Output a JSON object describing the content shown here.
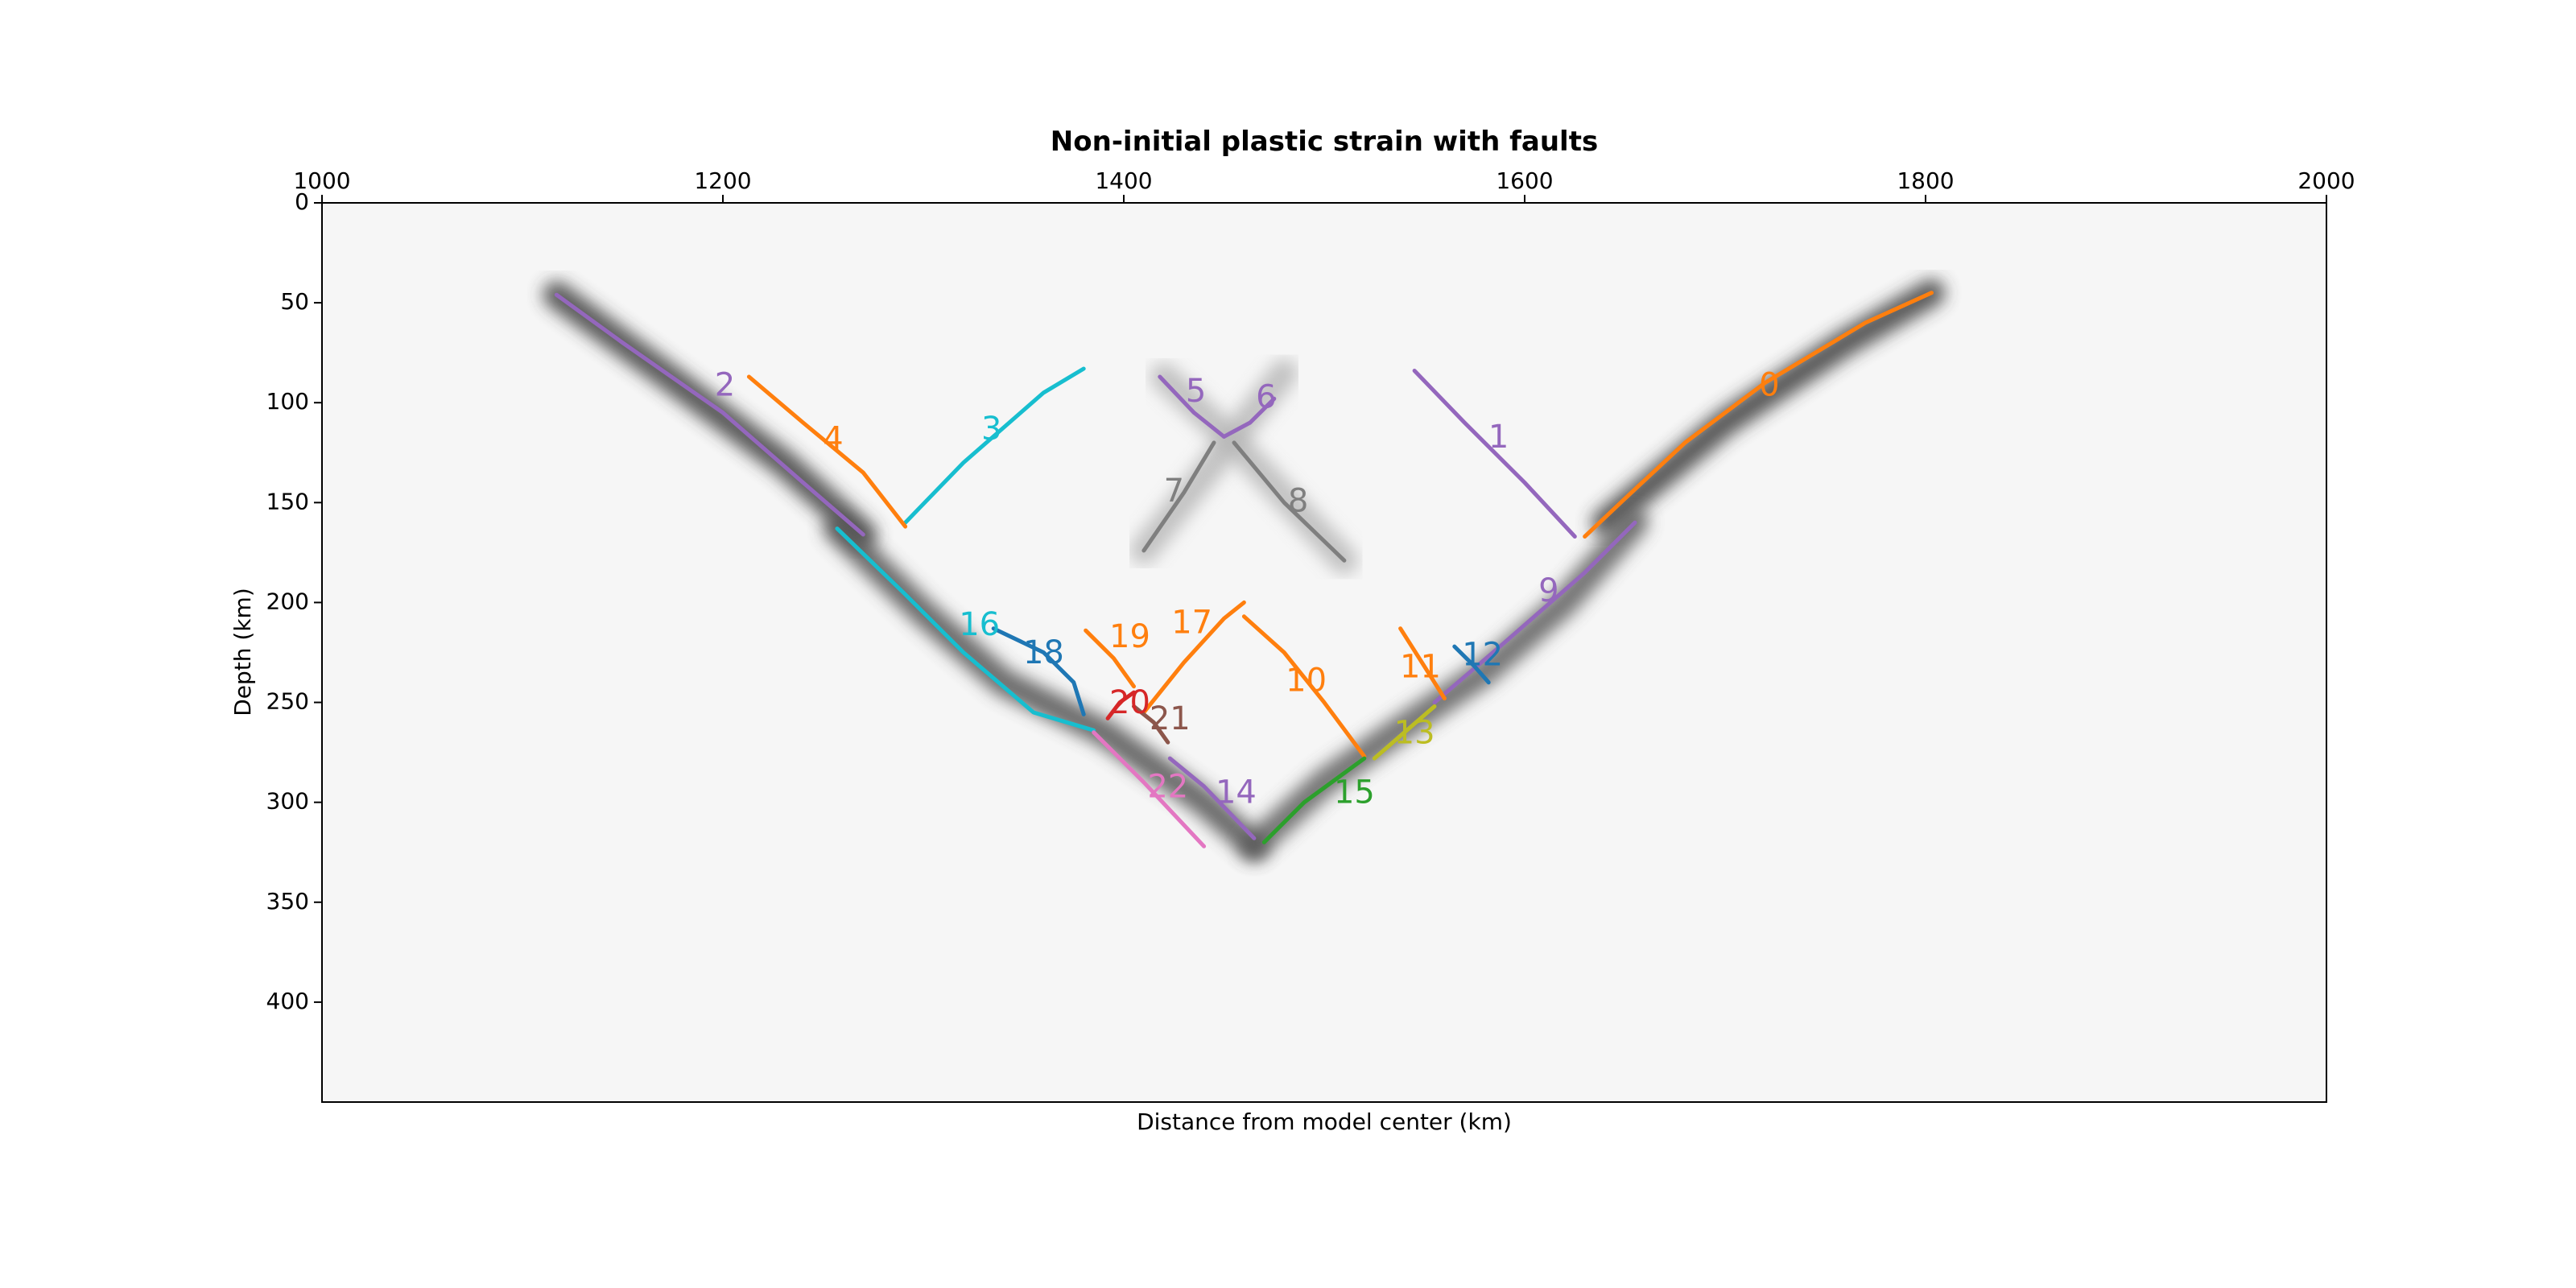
{
  "chart_data": {
    "type": "line",
    "title": "Non-initial plastic strain with faults",
    "xlabel": "Distance from model center (km)",
    "ylabel": "Depth (km)",
    "xlim": [
      1000,
      2000
    ],
    "ylim": [
      450,
      0
    ],
    "y_inverted": true,
    "x_axis_position": "top",
    "xticks": [
      1000,
      1200,
      1400,
      1600,
      1800,
      2000
    ],
    "yticks": [
      0,
      50,
      100,
      150,
      200,
      250,
      300,
      350,
      400
    ],
    "grid": false,
    "legend": "none",
    "background_colormap": "grays",
    "faults": [
      {
        "label": "0",
        "color": "#ff7f0e",
        "x": [
          1803,
          1770,
          1720,
          1680,
          1650,
          1630
        ],
        "y": [
          45,
          60,
          90,
          120,
          148,
          167
        ]
      },
      {
        "label": "1",
        "color": "#9467bd",
        "x": [
          1545,
          1570,
          1600,
          1625
        ],
        "y": [
          84,
          110,
          140,
          167
        ]
      },
      {
        "label": "2",
        "color": "#9467bd",
        "x": [
          1117,
          1150,
          1200,
          1240,
          1270
        ],
        "y": [
          46,
          70,
          105,
          140,
          166
        ]
      },
      {
        "label": "3",
        "color": "#17becf",
        "x": [
          1291,
          1320,
          1360,
          1380
        ],
        "y": [
          160,
          130,
          95,
          83
        ]
      },
      {
        "label": "4",
        "color": "#ff7f0e",
        "x": [
          1213,
          1240,
          1270,
          1291
        ],
        "y": [
          87,
          110,
          135,
          162
        ]
      },
      {
        "label": "5",
        "color": "#9467bd",
        "x": [
          1418,
          1435,
          1450
        ],
        "y": [
          87,
          105,
          117
        ]
      },
      {
        "label": "6",
        "color": "#9467bd",
        "x": [
          1450,
          1463,
          1475
        ],
        "y": [
          117,
          110,
          98
        ]
      },
      {
        "label": "7",
        "color": "#7f7f7f",
        "x": [
          1410,
          1430,
          1445
        ],
        "y": [
          174,
          145,
          120
        ]
      },
      {
        "label": "8",
        "color": "#7f7f7f",
        "x": [
          1455,
          1480,
          1510
        ],
        "y": [
          120,
          150,
          179
        ]
      },
      {
        "label": "9",
        "color": "#9467bd",
        "x": [
          1555,
          1590,
          1630,
          1655
        ],
        "y": [
          250,
          220,
          185,
          160
        ]
      },
      {
        "label": "10",
        "color": "#ff7f0e",
        "x": [
          1460,
          1480,
          1500,
          1520
        ],
        "y": [
          207,
          225,
          250,
          277
        ]
      },
      {
        "label": "11",
        "color": "#ff7f0e",
        "x": [
          1538,
          1550,
          1560
        ],
        "y": [
          213,
          232,
          248
        ]
      },
      {
        "label": "12",
        "color": "#1f77b4",
        "x": [
          1565,
          1575,
          1582
        ],
        "y": [
          222,
          232,
          240
        ]
      },
      {
        "label": "13",
        "color": "#bcbd22",
        "x": [
          1525,
          1540,
          1555
        ],
        "y": [
          278,
          265,
          252
        ]
      },
      {
        "label": "14",
        "color": "#9467bd",
        "x": [
          1423,
          1440,
          1465
        ],
        "y": [
          278,
          292,
          318
        ]
      },
      {
        "label": "15",
        "color": "#2ca02c",
        "x": [
          1470,
          1490,
          1520
        ],
        "y": [
          320,
          300,
          278
        ]
      },
      {
        "label": "16",
        "color": "#17becf",
        "x": [
          1257,
          1290,
          1320,
          1355,
          1385
        ],
        "y": [
          163,
          195,
          225,
          255,
          264
        ]
      },
      {
        "label": "17",
        "color": "#ff7f0e",
        "x": [
          1410,
          1430,
          1450,
          1460
        ],
        "y": [
          255,
          230,
          208,
          200
        ]
      },
      {
        "label": "18",
        "color": "#1f77b4",
        "x": [
          1335,
          1360,
          1375,
          1380
        ],
        "y": [
          213,
          225,
          240,
          256
        ]
      },
      {
        "label": "19",
        "color": "#ff7f0e",
        "x": [
          1381,
          1395,
          1405
        ],
        "y": [
          214,
          228,
          242
        ]
      },
      {
        "label": "20",
        "color": "#d62728",
        "x": [
          1392,
          1398,
          1405
        ],
        "y": [
          258,
          250,
          245
        ]
      },
      {
        "label": "21",
        "color": "#8c564b",
        "x": [
          1405,
          1415,
          1422
        ],
        "y": [
          252,
          260,
          270
        ]
      },
      {
        "label": "22",
        "color": "#e377c2",
        "x": [
          1385,
          1410,
          1440
        ],
        "y": [
          265,
          290,
          322
        ]
      }
    ],
    "label_positions": [
      {
        "label": "0",
        "x": 1722,
        "y": 92
      },
      {
        "label": "1",
        "x": 1587,
        "y": 118
      },
      {
        "label": "2",
        "x": 1201,
        "y": 92
      },
      {
        "label": "3",
        "x": 1334,
        "y": 114
      },
      {
        "label": "4",
        "x": 1255,
        "y": 119
      },
      {
        "label": "5",
        "x": 1436,
        "y": 95
      },
      {
        "label": "6",
        "x": 1471,
        "y": 98
      },
      {
        "label": "7",
        "x": 1425,
        "y": 145
      },
      {
        "label": "8",
        "x": 1487,
        "y": 150
      },
      {
        "label": "9",
        "x": 1612,
        "y": 195
      },
      {
        "label": "10",
        "x": 1491,
        "y": 240
      },
      {
        "label": "11",
        "x": 1548,
        "y": 233
      },
      {
        "label": "12",
        "x": 1579,
        "y": 227
      },
      {
        "label": "13",
        "x": 1545,
        "y": 266
      },
      {
        "label": "14",
        "x": 1456,
        "y": 296
      },
      {
        "label": "15",
        "x": 1515,
        "y": 296
      },
      {
        "label": "16",
        "x": 1328,
        "y": 212
      },
      {
        "label": "17",
        "x": 1434,
        "y": 211
      },
      {
        "label": "18",
        "x": 1360,
        "y": 226
      },
      {
        "label": "19",
        "x": 1403,
        "y": 218
      },
      {
        "label": "20",
        "x": 1403,
        "y": 251
      },
      {
        "label": "21",
        "x": 1423,
        "y": 259
      },
      {
        "label": "22",
        "x": 1422,
        "y": 293
      }
    ],
    "strain_bands": [
      {
        "x": [
          1117,
          1170,
          1230,
          1270
        ],
        "y": [
          46,
          85,
          130,
          166
        ],
        "strength": 0.85
      },
      {
        "x": [
          1803,
          1760,
          1700,
          1640
        ],
        "y": [
          45,
          70,
          110,
          160
        ],
        "strength": 0.85
      },
      {
        "x": [
          1257,
          1300,
          1340,
          1390,
          1440,
          1465
        ],
        "y": [
          163,
          205,
          240,
          265,
          300,
          322
        ],
        "strength": 0.75
      },
      {
        "x": [
          1465,
          1500,
          1540,
          1580,
          1620,
          1655
        ],
        "y": [
          322,
          290,
          262,
          235,
          200,
          160
        ],
        "strength": 0.7
      },
      {
        "x": [
          1410,
          1445,
          1480
        ],
        "y": [
          174,
          130,
          85
        ],
        "strength": 0.25
      },
      {
        "x": [
          1420,
          1455,
          1510
        ],
        "y": [
          87,
          120,
          179
        ],
        "strength": 0.25
      }
    ]
  }
}
